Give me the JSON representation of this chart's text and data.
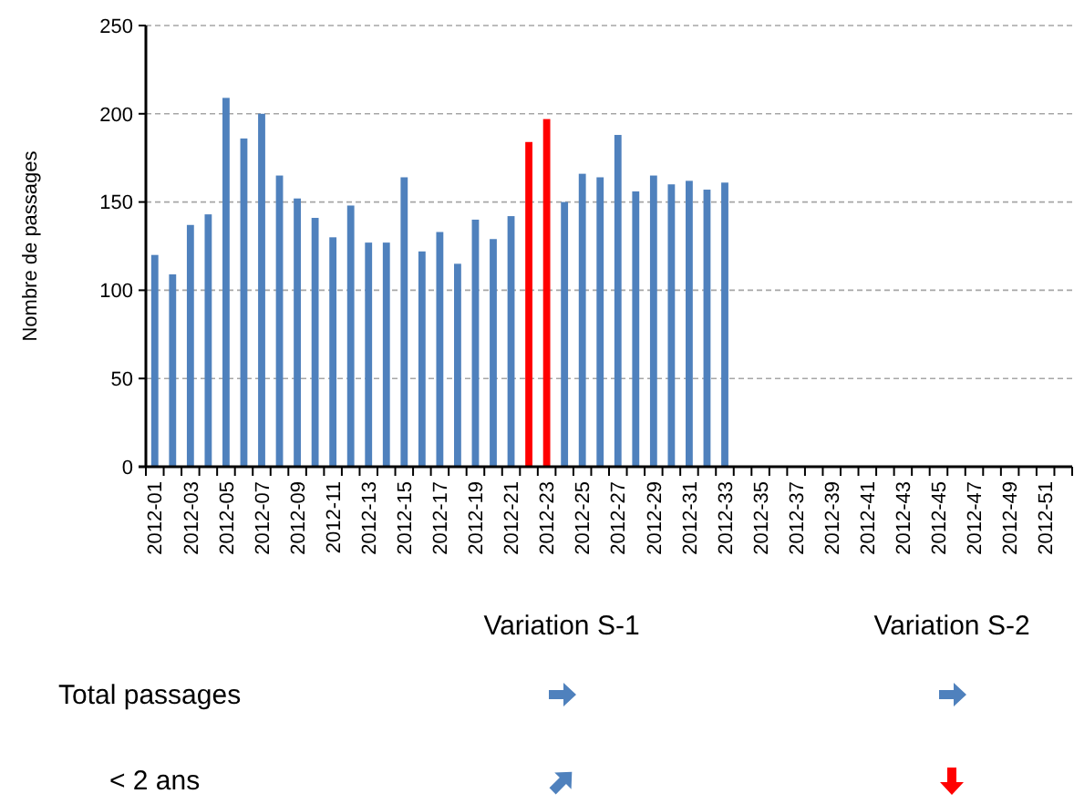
{
  "chart_data": {
    "type": "bar",
    "ylabel": "Nombre de passages",
    "categories": [
      "2012-01",
      null,
      "2012-03",
      null,
      "2012-05",
      null,
      "2012-07",
      null,
      "2012-09",
      null,
      "2012-11",
      null,
      "2012-13",
      null,
      "2012-15",
      null,
      "2012-17",
      null,
      "2012-19",
      null,
      "2012-21",
      null,
      "2012-23",
      null,
      "2012-25",
      null,
      "2012-27",
      null,
      "2012-29",
      null,
      "2012-31",
      null,
      "2012-33",
      null,
      "2012-35",
      null,
      "2012-37",
      null,
      "2012-39",
      null,
      "2012-41",
      null,
      "2012-43",
      null,
      "2012-45",
      null,
      "2012-47",
      null,
      "2012-49",
      null,
      "2012-51",
      null
    ],
    "values": [
      120,
      109,
      137,
      143,
      209,
      186,
      200,
      165,
      152,
      141,
      130,
      148,
      127,
      127,
      164,
      122,
      133,
      115,
      140,
      129,
      142,
      184,
      197,
      150,
      166,
      164,
      188,
      156,
      165,
      160,
      162,
      157,
      161,
      null,
      null,
      null,
      null,
      null,
      null,
      null,
      null,
      null,
      null,
      null,
      null,
      null,
      null,
      null,
      null,
      null,
      null,
      null
    ],
    "colors": [
      "#4f81bd",
      "#4f81bd",
      "#4f81bd",
      "#4f81bd",
      "#4f81bd",
      "#4f81bd",
      "#4f81bd",
      "#4f81bd",
      "#4f81bd",
      "#4f81bd",
      "#4f81bd",
      "#4f81bd",
      "#4f81bd",
      "#4f81bd",
      "#4f81bd",
      "#4f81bd",
      "#4f81bd",
      "#4f81bd",
      "#4f81bd",
      "#4f81bd",
      "#4f81bd",
      "#ff0000",
      "#ff0000",
      "#4f81bd",
      "#4f81bd",
      "#4f81bd",
      "#4f81bd",
      "#4f81bd",
      "#4f81bd",
      "#4f81bd",
      "#4f81bd",
      "#4f81bd",
      "#4f81bd",
      null,
      null,
      null,
      null,
      null,
      null,
      null,
      null,
      null,
      null,
      null,
      null,
      null,
      null,
      null,
      null,
      null,
      null,
      null
    ],
    "ylim": [
      0,
      250
    ],
    "yticks": [
      0,
      50,
      100,
      150,
      200,
      250
    ],
    "grid": "y",
    "annotations": [
      "Variation S-1",
      "Variation S-2",
      "Total passages",
      "< 2 ans"
    ]
  }
}
